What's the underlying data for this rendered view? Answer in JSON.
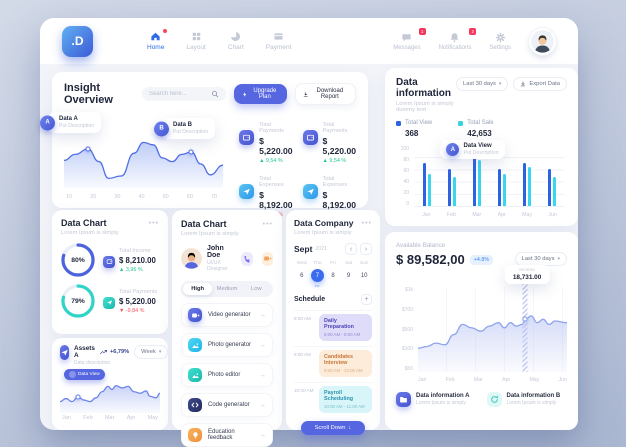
{
  "icons": {
    "chevron_down": "▾",
    "prev": "‹",
    "next": "›",
    "arrow_right": "→",
    "plus": "+",
    "dots": "•••",
    "down_arrow": "↓",
    "cal_dots": "•••"
  },
  "nav": {
    "logo": ".D",
    "items": [
      {
        "label": "Home"
      },
      {
        "label": "Layout"
      },
      {
        "label": "Chart"
      },
      {
        "label": "Payment"
      }
    ],
    "messages": {
      "label": "Messages",
      "badge": "1"
    },
    "notifications": {
      "label": "Notifications",
      "badge": "2"
    },
    "settings": {
      "label": "Settings"
    }
  },
  "insight": {
    "title": "Insight Overview",
    "search_placeholder": "Search here...",
    "upgrade_label": "Upgrade Plan",
    "download_label": "Download Report",
    "tooltip_a": {
      "badge": "A",
      "title": "Data A",
      "desc": "Put Description"
    },
    "tooltip_b": {
      "badge": "B",
      "title": "Data B",
      "desc": "Put Description"
    },
    "chart": {
      "type": "area",
      "stroke": "#4f6fe6",
      "fill": "#7e9af0",
      "x_ticks": [
        "10",
        "20",
        "30",
        "40",
        "50",
        "60",
        "70"
      ],
      "points": [
        [
          0,
          46
        ],
        [
          7,
          56
        ],
        [
          15,
          65
        ],
        [
          22,
          44
        ],
        [
          28,
          16
        ],
        [
          36,
          20
        ],
        [
          44,
          58
        ],
        [
          50,
          76
        ],
        [
          56,
          72
        ],
        [
          62,
          50
        ],
        [
          68,
          44
        ],
        [
          74,
          56
        ],
        [
          80,
          60
        ],
        [
          86,
          40
        ],
        [
          92,
          22
        ],
        [
          100,
          38
        ]
      ],
      "dots": [
        [
          15,
          65
        ],
        [
          80,
          60
        ]
      ]
    },
    "stats": [
      {
        "label": "Total Payments",
        "value": "$ 5,220.00",
        "delta": "▲ 9,54 %",
        "dir": "up"
      },
      {
        "label": "Total Expenses",
        "value": "$ 8,192.00",
        "delta": "▼ 5,13 %",
        "dir": "down"
      },
      {
        "label": "Total Payments",
        "value": "$ 5,220.00",
        "delta": "▲ 9,54 %",
        "dir": "up"
      },
      {
        "label": "Total Expenses",
        "value": "$ 8,192.00",
        "delta": "▼ 5,13 %",
        "dir": "down"
      }
    ]
  },
  "data_information": {
    "title": "Data information",
    "subtitle": "Lorem Ipsum is simply dummy text",
    "range_label": "Last 30 days",
    "export_label": "Export Data",
    "legend": [
      {
        "label": "Total View",
        "value": "368",
        "color": "#2d63e2"
      },
      {
        "label": "Total Sale",
        "value": "42,653",
        "color": "#38d3e0"
      }
    ],
    "tooltip": {
      "badge": "A",
      "title": "Data View",
      "desc": "Put Description"
    },
    "chart": {
      "type": "bar",
      "categories": [
        "Jan",
        "Feb",
        "Mar",
        "Apr",
        "May",
        "Jun"
      ],
      "y_ticks": [
        "100",
        "80",
        "60",
        "40",
        "20",
        "0"
      ],
      "series": [
        {
          "name": "Total View",
          "color": "#2d63e2",
          "values": [
            75,
            64,
            100,
            64,
            75,
            64
          ]
        },
        {
          "name": "Total Sale",
          "color": "#3ad6f0",
          "values": [
            55,
            50,
            80,
            56,
            67,
            50
          ]
        }
      ]
    }
  },
  "donut_card": {
    "title": "Data Chart",
    "subtitle": "Lorem Ipsum is simply",
    "items": [
      {
        "percent": 80,
        "label_pct": "80%",
        "label": "Total Income",
        "value": "$ 8,210.00",
        "delta": "▲ 3,96 %",
        "dir": "up",
        "color": "#4c63de"
      },
      {
        "percent": 79,
        "label_pct": "79%",
        "label": "Total Payments",
        "value": "$ 5,220.00",
        "delta": "▼ -9,84 %",
        "dir": "down",
        "color": "#2fd3c8"
      }
    ]
  },
  "assets": {
    "title": "Assets A",
    "subtitle": "Data description",
    "delta": "+6,79%",
    "range_label": "Week",
    "tooltip": "Data View",
    "chart": {
      "type": "area",
      "stroke": "#6c84ea",
      "fill": "#93a7f0",
      "x_ticks": [
        "Jan",
        "Feb",
        "Mar",
        "Apr",
        "May"
      ],
      "points": [
        [
          0,
          30
        ],
        [
          6,
          38
        ],
        [
          12,
          30
        ],
        [
          18,
          42
        ],
        [
          24,
          34
        ],
        [
          30,
          30
        ],
        [
          36,
          40
        ],
        [
          42,
          56
        ],
        [
          48,
          70
        ],
        [
          52,
          62
        ],
        [
          56,
          72
        ],
        [
          62,
          66
        ],
        [
          68,
          70
        ],
        [
          74,
          56
        ],
        [
          80,
          52
        ],
        [
          86,
          58
        ],
        [
          90,
          44
        ],
        [
          96,
          40
        ],
        [
          100,
          52
        ]
      ],
      "dots": [
        [
          18,
          42
        ]
      ]
    }
  },
  "team": {
    "title": "Data Chart",
    "subtitle": "Lorem Ipsum is simply",
    "user": {
      "name": "John Doe",
      "role": "UI/UX Designer"
    },
    "tabs": [
      {
        "label": "High"
      },
      {
        "label": "Medium"
      },
      {
        "label": "Low"
      }
    ],
    "items": [
      {
        "label": "Video generator"
      },
      {
        "label": "Photo generator"
      },
      {
        "label": "Photo editor"
      },
      {
        "label": "Code generator"
      },
      {
        "label": "Education feedback"
      }
    ]
  },
  "company": {
    "title": "Data Company",
    "subtitle": "Lorem Ipsum is simply",
    "month": "Sept",
    "year": "2021",
    "week_days": [
      "Wed",
      "Thu",
      "Fri",
      "Sat",
      "Sun"
    ],
    "dates": [
      "6",
      "7",
      "8",
      "9",
      "10"
    ],
    "selected_date": "7",
    "schedule_label": "Schedule",
    "schedule": [
      {
        "time": "8:00 AM",
        "title": "Daily Preparation",
        "range": "8:00 AM - 9:00 AM"
      },
      {
        "time": "9:00 AM",
        "title": "Candidates Interview",
        "range": "9:00 AM - 10:00 AM"
      },
      {
        "time": "10:00 AM",
        "title": "Payroll Scheduling",
        "range": "10:00 AM - 11:00 AM"
      }
    ],
    "button_label": "Scroll Down"
  },
  "balance": {
    "label": "Available Balance",
    "value": "$ 89,582,00",
    "delta": "+4.8%",
    "range_label": "Last 30 days",
    "tooltip": {
      "label": "Income",
      "value": "18,731.00"
    },
    "chart": {
      "type": "area",
      "stroke": "#8fa3ee",
      "fill": "#aab8f0",
      "x_ticks": [
        "Jan",
        "Feb",
        "Mar",
        "Apr",
        "May",
        "Jun"
      ],
      "y_ticks": [
        "$1k",
        "$700",
        "$500",
        "$100",
        "$50"
      ],
      "points": [
        [
          0,
          28
        ],
        [
          6,
          30
        ],
        [
          12,
          34
        ],
        [
          18,
          32
        ],
        [
          24,
          44
        ],
        [
          30,
          56
        ],
        [
          36,
          52
        ],
        [
          42,
          48
        ],
        [
          48,
          54
        ],
        [
          54,
          58
        ],
        [
          58,
          52
        ],
        [
          62,
          58
        ],
        [
          66,
          54
        ],
        [
          70,
          56
        ],
        [
          72,
          62
        ],
        [
          76,
          66
        ],
        [
          80,
          58
        ],
        [
          84,
          62
        ],
        [
          88,
          56
        ],
        [
          92,
          60
        ],
        [
          100,
          58
        ]
      ],
      "dots": [
        [
          72,
          62
        ]
      ],
      "marker_x": 72
    },
    "footer": [
      {
        "label": "Data information A",
        "subtitle": "Lorem Ipsum is simply"
      },
      {
        "label": "Data information B",
        "subtitle": "Lorem Ipsum is simply"
      }
    ]
  }
}
